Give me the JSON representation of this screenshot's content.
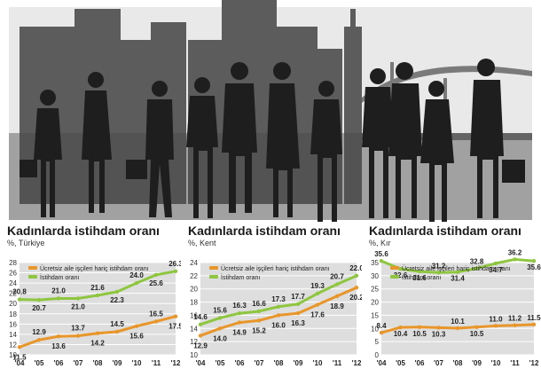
{
  "colors": {
    "orange": "#e8962a",
    "green": "#8ec63f",
    "bg": "#dedede",
    "grid": "#ffffff",
    "sky": "#e8e8e8",
    "buildings": "#5a5a5a",
    "people": "#1e1e1e"
  },
  "illustration": {
    "icon": "city-crowd-silhouette-icon"
  },
  "chart_data": [
    {
      "type": "line",
      "title": "Kadınlarda istihdam oranı",
      "subtitle": "%, Türkiye",
      "categories": [
        "'04",
        "'05",
        "'06",
        "'07",
        "'08",
        "'09",
        "'10",
        "'11",
        "'12"
      ],
      "ylim": [
        10,
        28
      ],
      "yticks": [
        10,
        12,
        14,
        16,
        18,
        20,
        22,
        24,
        26,
        28
      ],
      "series": [
        {
          "name": "Ücretsiz aile işçileri hariç istihdam oranı",
          "color": "orange",
          "values": [
            11.5,
            12.9,
            13.6,
            13.7,
            14.2,
            14.5,
            15.6,
            16.5,
            17.5
          ]
        },
        {
          "name": "İstihdam oranı",
          "color": "green",
          "values": [
            20.8,
            20.7,
            21.0,
            21.0,
            21.6,
            22.3,
            24.0,
            25.6,
            26.3
          ]
        }
      ]
    },
    {
      "type": "line",
      "title": "Kadınlarda istihdam oranı",
      "subtitle": "%, Kent",
      "categories": [
        "'04",
        "'05",
        "'06",
        "'07",
        "'08",
        "'09",
        "'10",
        "'11",
        "'12"
      ],
      "ylim": [
        10,
        24
      ],
      "yticks": [
        10,
        12,
        14,
        16,
        18,
        20,
        22,
        24
      ],
      "series": [
        {
          "name": "Ücretsiz aile işçileri hariç istihdam oranı",
          "color": "orange",
          "values": [
            12.9,
            14.0,
            14.9,
            15.2,
            16.0,
            16.3,
            17.6,
            18.9,
            20.2
          ]
        },
        {
          "name": "İstihdam oranı",
          "color": "green",
          "values": [
            14.6,
            15.6,
            16.3,
            16.6,
            17.3,
            17.7,
            19.3,
            20.7,
            22.0
          ]
        }
      ]
    },
    {
      "type": "line",
      "title": "Kadınlarda istihdam oranı",
      "subtitle": "%, Kır",
      "categories": [
        "'04",
        "'05",
        "'06",
        "'07",
        "'08",
        "'09",
        "'10",
        "'11",
        "'12"
      ],
      "ylim": [
        0,
        35
      ],
      "yticks": [
        0,
        5,
        10,
        15,
        20,
        25,
        30,
        35
      ],
      "series": [
        {
          "name": "Ücretsiz aile işçileri hariç istihdam oranı",
          "color": "orange",
          "values": [
            8.4,
            10.4,
            10.5,
            10.3,
            10.1,
            10.5,
            11.0,
            11.2,
            11.5
          ]
        },
        {
          "name": "İstihdam oranı",
          "color": "green",
          "values": [
            35.6,
            32.6,
            31.6,
            31.2,
            31.4,
            32.8,
            34.7,
            36.2,
            35.6
          ]
        }
      ]
    }
  ]
}
